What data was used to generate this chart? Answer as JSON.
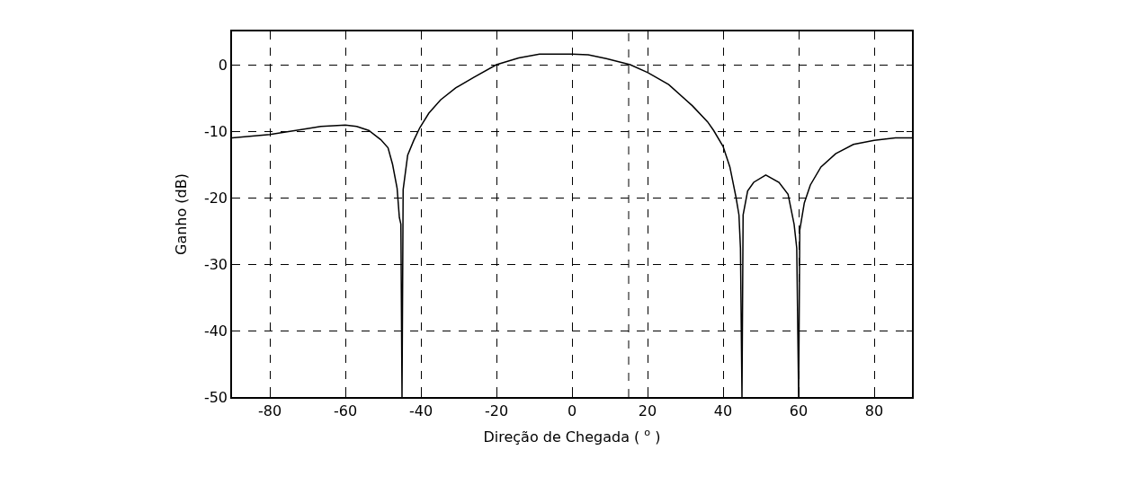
{
  "chart_data": {
    "type": "line",
    "xlabel": "Direção de Chegada ( $^{o}$ )",
    "ylabel": "Ganho (dB)",
    "xlim": [
      -90,
      90
    ],
    "xticks": [
      -80,
      -60,
      -40,
      -20,
      0,
      20,
      40,
      60,
      80
    ],
    "ylim": [
      -50,
      5
    ],
    "yticks": [
      -50,
      -40,
      -30,
      -20,
      -10,
      0
    ],
    "grid": true,
    "marker": "none",
    "line_style": "solid",
    "ref_lines": [
      {
        "axis": "x",
        "value": 15,
        "color": "#000000",
        "line_style": "dashed"
      }
    ],
    "series": [
      {
        "color": "#000000",
        "x": [
          -90,
          -80,
          -72,
          -66.5,
          -60,
          -57,
          -53.8,
          -50.6,
          -48.7,
          -47.5,
          -46.3,
          -45.7,
          -45.3,
          -45,
          -44.7,
          -43.5,
          -41.9,
          -40.3,
          -37.9,
          -34.8,
          -30.8,
          -26,
          -20,
          -14.1,
          -8.6,
          0,
          4.3,
          9.1,
          15.4,
          20.1,
          25.6,
          31.9,
          35.9,
          37.5,
          40,
          41.8,
          43.4,
          44.2,
          44.6,
          45,
          45.3,
          46.5,
          48.1,
          51.3,
          54.8,
          57.2,
          58.8,
          59.5,
          60,
          60.3,
          61.5,
          63.1,
          65.9,
          69.8,
          74.5,
          80,
          85.6,
          90
        ],
        "values": [
          -11.0,
          -10.5,
          -9.8,
          -9.3,
          -9.1,
          -9.3,
          -9.9,
          -11.3,
          -12.5,
          -15,
          -18.6,
          -23,
          -24,
          -50,
          -18.8,
          -13.6,
          -11.4,
          -9.5,
          -7.3,
          -5.3,
          -3.5,
          -1.9,
          0,
          1.0,
          1.6,
          1.6,
          1.5,
          0.9,
          0,
          -1.2,
          -3.0,
          -6.2,
          -8.6,
          -9.9,
          -12.3,
          -15.4,
          -19.9,
          -22.6,
          -27.6,
          -50,
          -22.6,
          -19,
          -17.7,
          -16.6,
          -17.7,
          -19.5,
          -24,
          -27.6,
          -50,
          -24.9,
          -20.8,
          -18.1,
          -15.4,
          -13.4,
          -12.0,
          -11.4,
          -11.0,
          -11.0
        ]
      }
    ]
  }
}
